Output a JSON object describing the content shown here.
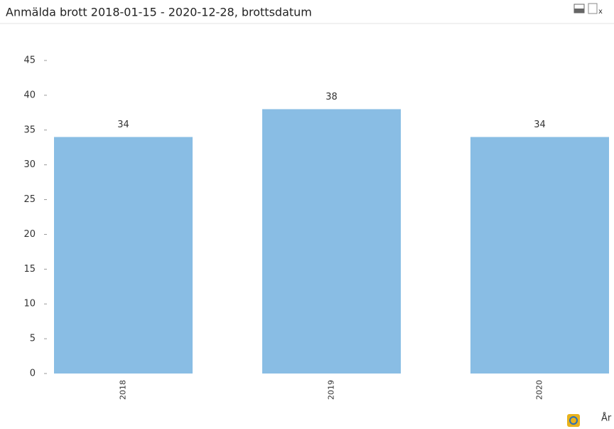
{
  "chart_data": {
    "type": "bar",
    "title": "Anmälda brott 2018-01-15 - 2020-12-28, brottsdatum",
    "categories": [
      "2018",
      "2019",
      "2020"
    ],
    "values": [
      34,
      38,
      34
    ],
    "color": "#89bde4",
    "x_label": "År",
    "ylim": [
      0,
      45
    ],
    "yticks": [
      0,
      5,
      10,
      15,
      20,
      25,
      30,
      35,
      40,
      45
    ],
    "grid": false
  }
}
